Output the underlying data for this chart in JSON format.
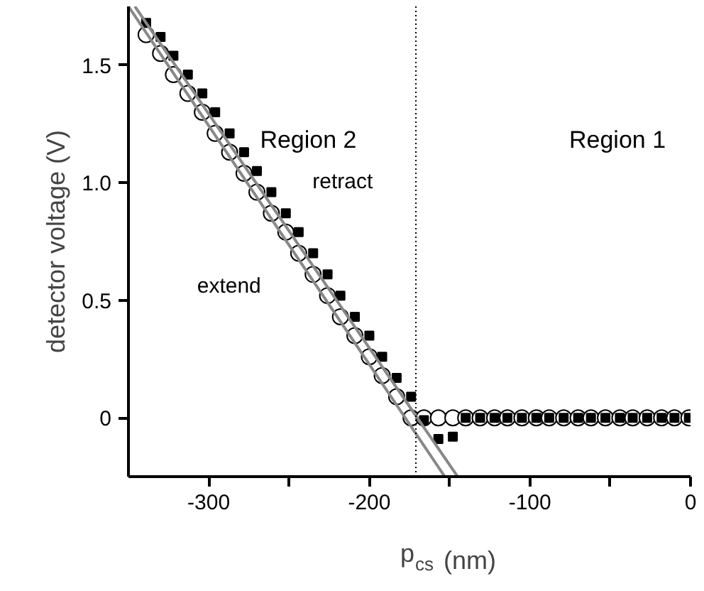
{
  "chart_data": {
    "type": "scatter",
    "xlabel": "p$_{cs}$ (nm)",
    "ylabel": "detector voltage (V)",
    "x": [
      -339,
      -330,
      -322,
      -313,
      -304,
      -296,
      -287,
      -278,
      -270,
      -261,
      -252,
      -244,
      -235,
      -226,
      -218,
      -209,
      -200,
      -192,
      -183,
      -174,
      -166,
      -157,
      -148,
      -140,
      -131,
      -122,
      -114,
      -105,
      -96,
      -88,
      -79,
      -70,
      -62,
      -53,
      -44,
      -36,
      -27,
      -18,
      -10,
      -1
    ],
    "series": [
      {
        "name": "extend",
        "color": "#000000",
        "marker": "circle",
        "values": [
          1.63,
          1.55,
          1.46,
          1.38,
          1.3,
          1.21,
          1.13,
          1.04,
          0.96,
          0.87,
          0.79,
          0.7,
          0.61,
          0.52,
          0.43,
          0.35,
          0.26,
          0.18,
          0.09,
          0,
          0,
          0,
          0,
          0,
          0,
          0,
          0,
          0,
          0,
          0,
          0,
          0,
          0,
          0,
          0,
          0,
          0,
          0,
          0,
          0
        ]
      },
      {
        "name": "retract",
        "color": "#000000",
        "marker": "square",
        "values": [
          1.68,
          1.62,
          1.54,
          1.46,
          1.38,
          1.3,
          1.21,
          1.13,
          1.05,
          0.96,
          0.87,
          0.79,
          0.7,
          0.61,
          0.52,
          0.43,
          0.35,
          0.26,
          0.17,
          0.09,
          -0.01,
          -0.09,
          -0.08,
          0,
          0,
          0,
          0,
          0,
          0,
          0,
          0,
          0,
          0,
          0,
          0,
          0,
          0,
          0,
          0,
          0
        ]
      },
      {
        "type": "line",
        "color": "#888888",
        "x": [
          -350,
          -153
        ],
        "values": [
          1.75,
          -0.25
        ]
      },
      {
        "type": "line",
        "color": "#888888",
        "x": [
          -346,
          -145
        ],
        "values": [
          1.75,
          -0.25
        ]
      }
    ],
    "xlim": [
      -350,
      0
    ],
    "ylim": [
      -0.25,
      1.75
    ],
    "xticks": [
      -300,
      {
        "value": -250,
        "label": null
      },
      -200,
      {
        "value": -150,
        "label": null
      },
      -100,
      {
        "value": -50,
        "label": null
      },
      0
    ],
    "yticks": [
      0,
      0.5,
      {
        "value": 1.0,
        "label": "1.0"
      },
      1.5
    ],
    "ref_lines": [
      {
        "axis": "x",
        "value": -171,
        "label": null,
        "color": "#000000",
        "line_style": "dotted"
      }
    ],
    "annotations": [
      "Region 2",
      "Region 1"
    ],
    "grid": false
  }
}
